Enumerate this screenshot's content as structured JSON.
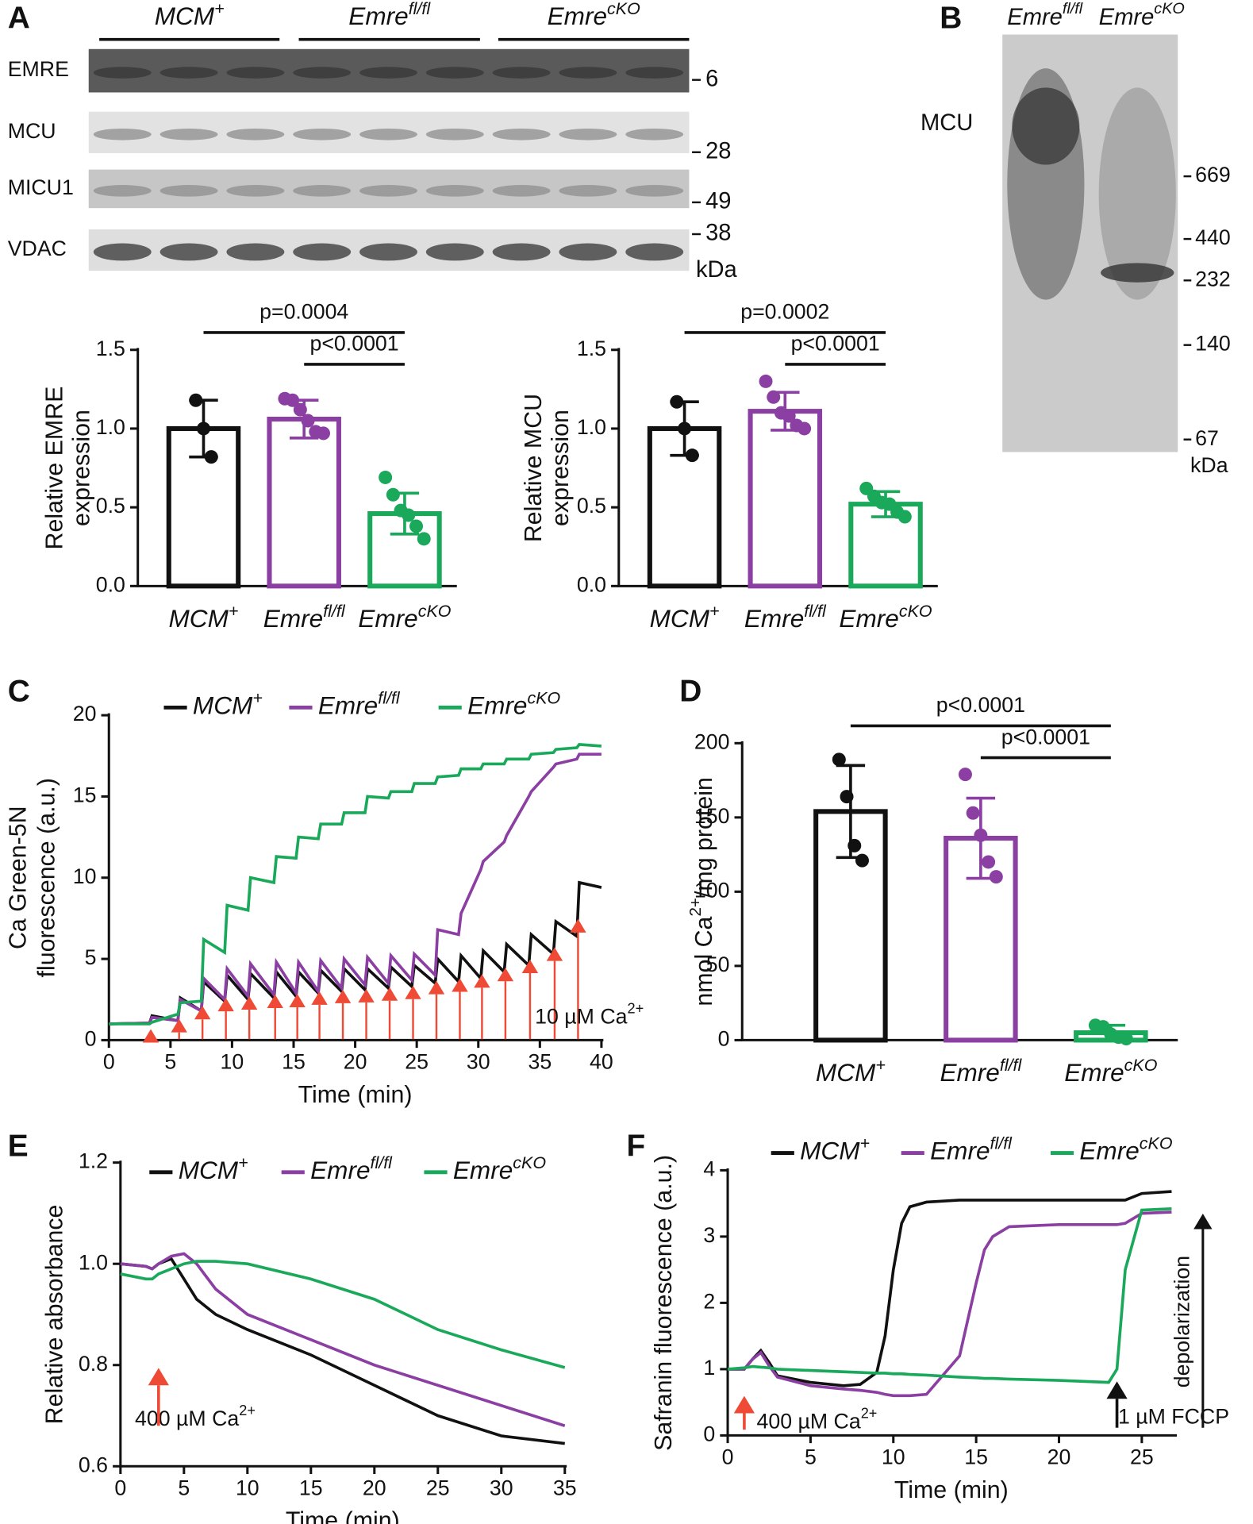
{
  "panel_labels": [
    "A",
    "B",
    "C",
    "D",
    "E",
    "F"
  ],
  "blot_a": {
    "groups": [
      {
        "text": "MCM",
        "sup": "+"
      },
      {
        "text": "Emre",
        "sup": "fl/fl"
      },
      {
        "text": "Emre",
        "sup": "cKO"
      }
    ],
    "rows": [
      {
        "label": "EMRE",
        "marker": "6"
      },
      {
        "label": "MCU",
        "marker": "28"
      },
      {
        "label": "MICU1",
        "marker": "49"
      },
      {
        "label": "VDAC",
        "marker": "38"
      }
    ],
    "unit": "kDa"
  },
  "blot_b": {
    "lanes": [
      {
        "text": "Emre",
        "sup": "fl/fl"
      },
      {
        "text": "Emre",
        "sup": "cKO"
      }
    ],
    "band_label": "MCU",
    "markers": [
      "669",
      "440",
      "232",
      "140",
      "67"
    ],
    "unit": "kDa"
  },
  "chart_data": [
    {
      "type": "bar",
      "ylabel": [
        "Relative EMRE",
        "expression"
      ],
      "categories": [
        "MCM",
        "Emre",
        "Emre"
      ],
      "category_sups": [
        "+",
        "fl/fl",
        "cKO"
      ],
      "values": [
        1.0,
        1.06,
        0.46
      ],
      "errors": [
        0.18,
        0.12,
        0.13
      ],
      "points": [
        [
          1.18,
          1.0,
          0.82
        ],
        [
          1.19,
          1.18,
          1.12,
          1.05,
          0.98,
          0.97
        ],
        [
          0.69,
          0.58,
          0.48,
          0.45,
          0.38,
          0.3
        ]
      ],
      "colors": [
        "#111111",
        "#8b3fa3",
        "#1aa85a"
      ],
      "ylim": [
        0,
        1.5
      ],
      "yticks": [
        {
          "value": 0,
          "label": "0.0"
        },
        0.5,
        {
          "value": 1,
          "label": "1.0"
        },
        1.5
      ],
      "brackets": [
        {
          "from": 0,
          "to": 2,
          "label": "p=0.0004"
        },
        {
          "from": 1,
          "to": 2,
          "label": "p<0.0001"
        }
      ]
    },
    {
      "type": "bar",
      "ylabel": [
        "Relative MCU",
        "expression"
      ],
      "categories": [
        "MCM",
        "Emre",
        "Emre"
      ],
      "category_sups": [
        "+",
        "fl/fl",
        "cKO"
      ],
      "values": [
        1.0,
        1.11,
        0.52
      ],
      "errors": [
        0.17,
        0.12,
        0.08
      ],
      "points": [
        [
          1.17,
          1.0,
          0.83
        ],
        [
          1.3,
          1.2,
          1.1,
          1.08,
          1.02,
          1.0
        ],
        [
          0.62,
          0.57,
          0.53,
          0.52,
          0.47,
          0.44
        ]
      ],
      "colors": [
        "#111111",
        "#8b3fa3",
        "#1aa85a"
      ],
      "ylim": [
        0,
        1.5
      ],
      "yticks": [
        {
          "value": 0,
          "label": "0.0"
        },
        0.5,
        {
          "value": 1,
          "label": "1.0"
        },
        1.5
      ],
      "brackets": [
        {
          "from": 0,
          "to": 2,
          "label": "p=0.0002"
        },
        {
          "from": 1,
          "to": 2,
          "label": "p<0.0001"
        }
      ]
    },
    {
      "type": "bar",
      "ylabel": [
        {
          "text": "nmol Ca",
          "sup": "2+",
          "rest": "/mg protein"
        }
      ],
      "categories": [
        "MCM",
        "Emre",
        "Emre"
      ],
      "category_sups": [
        "+",
        "fl/fl",
        "cKO"
      ],
      "values": [
        154,
        136,
        5
      ],
      "errors": [
        31,
        27,
        5
      ],
      "points": [
        [
          189,
          164,
          131,
          121
        ],
        [
          179,
          153,
          138,
          120,
          110
        ],
        [
          10,
          9,
          4,
          2,
          1
        ]
      ],
      "colors": [
        "#111111",
        "#8b3fa3",
        "#1aa85a"
      ],
      "ylim": [
        0,
        200
      ],
      "yticks": [
        0,
        50,
        100,
        150,
        200
      ],
      "brackets": [
        {
          "from": 0,
          "to": 2,
          "label": "p<0.0001"
        },
        {
          "from": 1,
          "to": 2,
          "label": "p<0.0001"
        }
      ]
    },
    {
      "type": "line",
      "xlabel": "Time (min)",
      "ylabel": [
        "Ca Green-5N",
        "fluorescence (a.u.)"
      ],
      "x": [
        0,
        3.3,
        3.5,
        5.6,
        5.8,
        7.5,
        7.7,
        9.4,
        9.6,
        11.3,
        11.5,
        13.4,
        13.6,
        15.2,
        15.4,
        17.0,
        17.2,
        18.9,
        19.1,
        20.8,
        21.0,
        22.7,
        22.9,
        24.6,
        24.8,
        26.5,
        26.7,
        28.4,
        28.6,
        30.2,
        30.4,
        32.1,
        32.3,
        34.1,
        34.3,
        36.1,
        36.3,
        38.0,
        38.2,
        40
      ],
      "series": [
        {
          "name": "MCM",
          "name_sup": "+",
          "color": "#111111",
          "values": [
            1.0,
            1.05,
            1.5,
            1.2,
            2.6,
            1.8,
            3.6,
            2.4,
            4.0,
            2.5,
            4.1,
            2.6,
            4.2,
            2.7,
            4.2,
            2.9,
            4.3,
            3.0,
            4.4,
            3.1,
            4.4,
            3.2,
            4.5,
            3.3,
            4.6,
            3.5,
            5.0,
            3.6,
            5.2,
            3.8,
            5.5,
            4.2,
            5.9,
            4.6,
            6.5,
            5.3,
            7.3,
            6.4,
            9.7,
            9.4
          ]
        },
        {
          "name": "Emre",
          "name_sup": "fl/fl",
          "color": "#8b3fa3",
          "values": [
            1.0,
            1.05,
            1.4,
            1.2,
            2.5,
            1.8,
            3.8,
            2.5,
            4.4,
            2.7,
            4.7,
            2.8,
            4.8,
            2.9,
            4.8,
            3.0,
            4.9,
            3.2,
            5.0,
            3.4,
            5.1,
            3.5,
            5.2,
            3.7,
            5.3,
            4.0,
            6.8,
            6.5,
            7.8,
            10.5,
            11.0,
            12.2,
            12.6,
            15.0,
            15.3,
            16.8,
            17.0,
            17.3,
            17.6,
            17.6
          ]
        },
        {
          "name": "Emre",
          "name_sup": "cKO",
          "color": "#1aa85a",
          "values": [
            1.0,
            1.0,
            1.1,
            1.6,
            2.3,
            2.4,
            6.2,
            5.4,
            8.3,
            8.0,
            10.0,
            9.7,
            11.3,
            11.2,
            12.5,
            12.4,
            13.3,
            13.3,
            14.0,
            14.0,
            15.0,
            14.9,
            15.3,
            15.3,
            15.8,
            15.8,
            16.2,
            16.3,
            16.7,
            16.7,
            17.0,
            17.0,
            17.3,
            17.3,
            17.6,
            17.7,
            17.9,
            18.0,
            18.2,
            18.1
          ]
        }
      ],
      "xlim": [
        0,
        40
      ],
      "ylim": [
        0,
        20
      ],
      "xticks": [
        0,
        5,
        10,
        15,
        20,
        25,
        30,
        35,
        40
      ],
      "yticks": [
        0,
        5,
        10,
        15,
        20
      ],
      "additions": {
        "x": [
          3.4,
          5.7,
          7.6,
          9.5,
          11.4,
          13.5,
          15.3,
          17.1,
          19.0,
          20.9,
          22.8,
          24.7,
          26.6,
          28.5,
          30.3,
          32.2,
          34.2,
          36.2,
          38.1
        ],
        "color": "#ef4a35"
      },
      "annotations": [
        {
          "text": "10 µM Ca",
          "sup": "2+"
        }
      ]
    },
    {
      "type": "line",
      "xlabel": "Time (min)",
      "ylabel": [
        "Relative absorbance"
      ],
      "x": [
        0,
        2,
        2.5,
        3,
        4,
        5,
        6,
        7.5,
        10,
        15,
        20,
        25,
        30,
        35
      ],
      "series": [
        {
          "name": "MCM",
          "name_sup": "+",
          "color": "#111111",
          "values": [
            1.0,
            0.995,
            0.99,
            1.0,
            1.01,
            0.97,
            0.93,
            0.9,
            0.87,
            0.82,
            0.76,
            0.7,
            0.66,
            0.645
          ]
        },
        {
          "name": "Emre",
          "name_sup": "fl/fl",
          "color": "#8b3fa3",
          "values": [
            1.0,
            0.995,
            0.99,
            1.0,
            1.015,
            1.02,
            1.0,
            0.95,
            0.9,
            0.85,
            0.8,
            0.76,
            0.72,
            0.68
          ]
        },
        {
          "name": "Emre",
          "name_sup": "cKO",
          "color": "#1aa85a",
          "values": [
            0.98,
            0.97,
            0.97,
            0.98,
            0.99,
            1.0,
            1.005,
            1.005,
            1.0,
            0.97,
            0.93,
            0.87,
            0.83,
            0.795
          ]
        }
      ],
      "xlim": [
        0,
        35
      ],
      "ylim": [
        0.6,
        1.2
      ],
      "xticks": [
        0,
        5,
        10,
        15,
        20,
        25,
        30,
        35
      ],
      "yticks": [
        0.6,
        0.8,
        {
          "value": 1,
          "label": "1.0"
        },
        1.2
      ],
      "annotations": [
        {
          "text": "400 µM Ca",
          "sup": "2+",
          "arrow_x": 3,
          "color": "#ef4a35"
        }
      ]
    },
    {
      "type": "line",
      "xlabel": "Time (min)",
      "ylabel": [
        "Safranin fluorescence (a.u.)"
      ],
      "x": [
        0,
        1,
        1.5,
        2,
        2.5,
        3,
        5,
        7,
        8,
        9,
        9.5,
        10,
        10.5,
        11,
        12,
        14,
        15,
        15.5,
        16,
        17,
        20,
        23,
        23.5,
        24,
        25,
        26.8
      ],
      "series": [
        {
          "name": "MCM",
          "name_sup": "+",
          "color": "#111111",
          "values": [
            1,
            1.0,
            1.15,
            1.28,
            1.1,
            0.9,
            0.8,
            0.75,
            0.77,
            0.95,
            1.5,
            2.5,
            3.2,
            3.45,
            3.52,
            3.55,
            3.55,
            3.55,
            3.55,
            3.55,
            3.55,
            3.55,
            3.55,
            3.55,
            3.65,
            3.68
          ]
        },
        {
          "name": "Emre",
          "name_sup": "fl/fl",
          "color": "#8b3fa3",
          "values": [
            1,
            1.0,
            1.15,
            1.25,
            1.05,
            0.88,
            0.75,
            0.7,
            0.68,
            0.65,
            0.62,
            0.6,
            0.6,
            0.6,
            0.62,
            1.2,
            2.3,
            2.8,
            3.0,
            3.15,
            3.18,
            3.18,
            3.18,
            3.2,
            3.35,
            3.37
          ]
        },
        {
          "name": "Emre",
          "name_sup": "cKO",
          "color": "#1aa85a",
          "values": [
            1,
            1.02,
            1.04,
            1.03,
            1.02,
            1.0,
            0.98,
            0.96,
            0.95,
            0.94,
            0.94,
            0.93,
            0.93,
            0.92,
            0.91,
            0.88,
            0.87,
            0.86,
            0.86,
            0.85,
            0.83,
            0.8,
            1.0,
            2.5,
            3.4,
            3.42
          ]
        }
      ],
      "xlim": [
        0,
        27
      ],
      "ylim": [
        0,
        4
      ],
      "xticks": [
        0,
        5,
        10,
        15,
        20,
        25
      ],
      "yticks": [
        0,
        1,
        2,
        3,
        4
      ],
      "annotations": [
        {
          "text": "400 µM Ca",
          "sup": "2+",
          "arrow_x": 1,
          "color": "#ef4a35"
        },
        {
          "text": "1 µM FCCP",
          "arrow_x": 23.5,
          "color": "#111111"
        },
        {
          "text": "depolarization"
        }
      ]
    }
  ]
}
